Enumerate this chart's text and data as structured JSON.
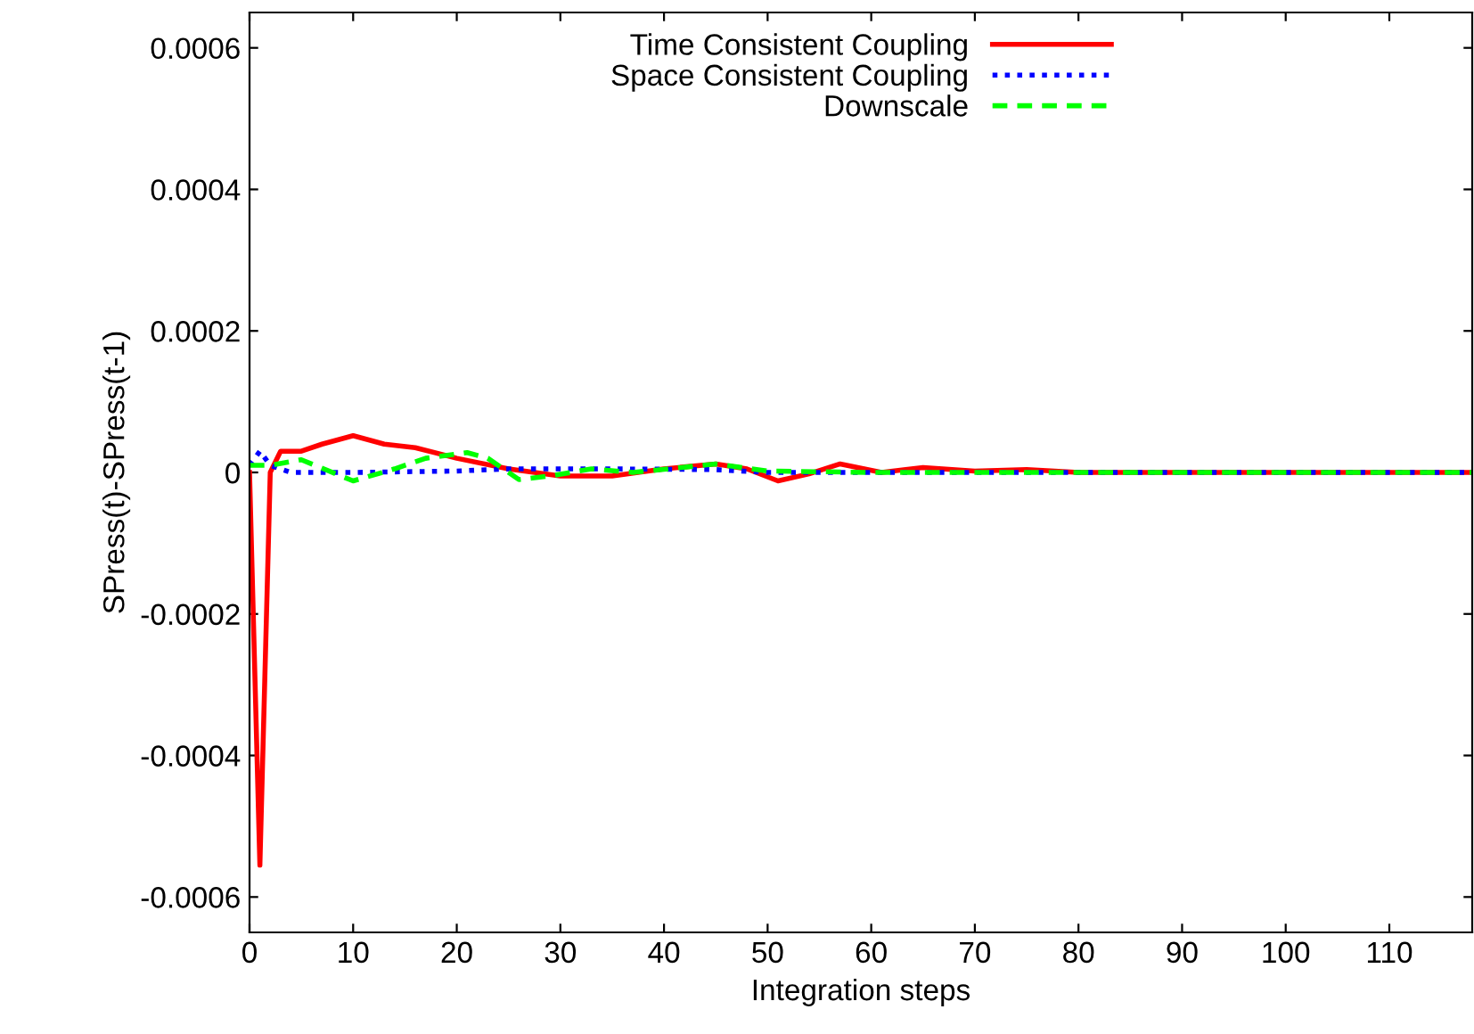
{
  "chart_data": {
    "type": "line",
    "xlabel": "Integration steps",
    "ylabel": "SPress(t)-SPress(t-1)",
    "xlim": [
      0,
      118
    ],
    "ylim": [
      -0.00065,
      0.00065
    ],
    "xticks": [
      0,
      10,
      20,
      30,
      40,
      50,
      60,
      70,
      80,
      90,
      100,
      110
    ],
    "yticks": [
      -0.0006,
      -0.0004,
      -0.0002,
      0,
      0.0002,
      0.0004,
      0.0006
    ],
    "grid": false,
    "legend": "top",
    "marker": "none",
    "series": [
      {
        "name": "Time Consistent Coupling",
        "color": "#ff0000",
        "line_style": "solid",
        "x": [
          0,
          1,
          2,
          3,
          5,
          7,
          10,
          13,
          16,
          20,
          25,
          30,
          35,
          40,
          45,
          48,
          51,
          54,
          57,
          61,
          65,
          70,
          75,
          80,
          118
        ],
        "values": [
          0,
          -0.000555,
          0,
          3e-05,
          3e-05,
          4e-05,
          5.2e-05,
          4e-05,
          3.5e-05,
          2e-05,
          5e-06,
          -5e-06,
          -5e-06,
          5e-06,
          1.2e-05,
          5e-06,
          -1.2e-05,
          -2e-06,
          1.2e-05,
          0,
          7e-06,
          2e-06,
          4e-06,
          0,
          0
        ]
      },
      {
        "name": "Space Consistent Coupling",
        "color": "#0000ff",
        "line_style": "dotted",
        "x": [
          0,
          1,
          2,
          4,
          10,
          20,
          25,
          35,
          45,
          50,
          118
        ],
        "values": [
          1e-05,
          3e-05,
          1e-05,
          0,
          0,
          2e-06,
          5e-06,
          5e-06,
          4e-06,
          0,
          0
        ]
      },
      {
        "name": "Downscale",
        "color": "#00ff00",
        "line_style": "dashed",
        "x": [
          0,
          2,
          5,
          10,
          14,
          17,
          21,
          23,
          26,
          29,
          33,
          37,
          45,
          50,
          60,
          118
        ],
        "values": [
          1e-05,
          1e-05,
          1.8e-05,
          -1.2e-05,
          5e-06,
          2e-05,
          2.8e-05,
          2e-05,
          -1e-05,
          -5e-06,
          5e-06,
          0,
          1.2e-05,
          2e-06,
          0,
          0
        ]
      }
    ]
  }
}
